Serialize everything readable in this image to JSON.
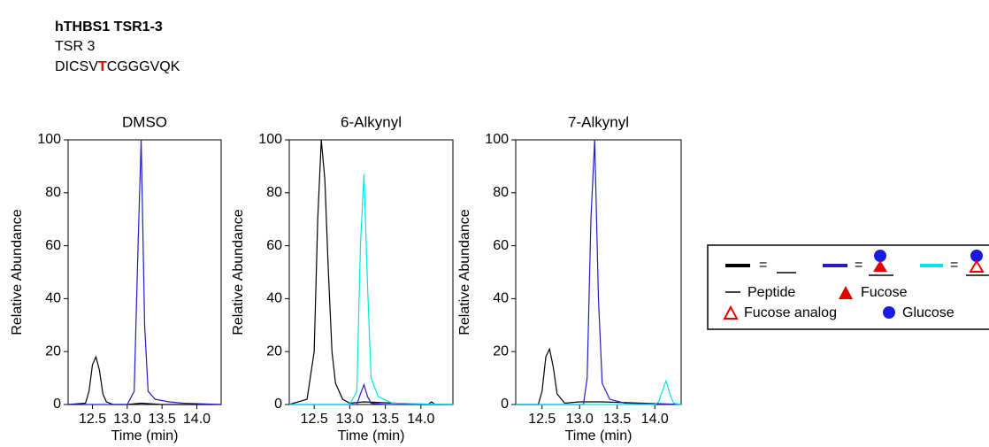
{
  "header": {
    "title": "hTHBS1 TSR1-3",
    "subtitle": "TSR 3",
    "sequence": [
      "DICSV",
      "T",
      "CGGGVQK"
    ]
  },
  "legend": {
    "equals": "=",
    "labels": [
      "Peptide",
      "Fucose",
      "Fucose analog",
      "Glucose"
    ]
  },
  "chart_data": [
    {
      "type": "line",
      "title": "DMSO",
      "xlabel": "Time (min)",
      "ylabel": "Relative Abundance",
      "xlim": [
        12.15,
        14.35
      ],
      "ylim": [
        0,
        100
      ],
      "xticks": [
        12.5,
        {
          "value": 13,
          "label": "13.0"
        },
        13.5,
        {
          "value": 14,
          "label": "14.0"
        }
      ],
      "yticks": [
        0,
        20,
        40,
        60,
        80,
        100
      ],
      "series": [
        {
          "color": "#000000",
          "x": [
            12.15,
            12.4,
            12.45,
            12.5,
            12.55,
            12.6,
            12.65,
            12.7,
            12.8,
            13.0,
            13.2,
            13.5,
            14.35
          ],
          "values": [
            0,
            0.5,
            5,
            15,
            18,
            13,
            4,
            1,
            0,
            0,
            0.5,
            0,
            0
          ]
        },
        {
          "color": "#2020c0",
          "x": [
            12.15,
            13.0,
            13.1,
            13.15,
            13.2,
            13.25,
            13.3,
            13.4,
            13.6,
            13.8,
            14.35
          ],
          "values": [
            0,
            0,
            5,
            55,
            100,
            30,
            5,
            2,
            1,
            0.5,
            0
          ]
        }
      ]
    },
    {
      "type": "line",
      "title": "6-Alkynyl",
      "xlabel": "Time (min)",
      "ylabel": "Relative Abundance",
      "xlim": [
        12.15,
        14.45
      ],
      "ylim": [
        0,
        100
      ],
      "xticks": [
        12.5,
        {
          "value": 13,
          "label": "13.0"
        },
        13.5,
        {
          "value": 14,
          "label": "14.0"
        }
      ],
      "yticks": [
        0,
        20,
        40,
        60,
        80,
        100
      ],
      "series": [
        {
          "color": "#000000",
          "x": [
            12.15,
            12.4,
            12.5,
            12.55,
            12.6,
            12.65,
            12.7,
            12.75,
            12.8,
            12.9,
            13.0,
            13.2,
            14.1,
            14.15,
            14.2,
            14.45
          ],
          "values": [
            0,
            2,
            20,
            70,
            100,
            85,
            50,
            20,
            8,
            2,
            0.5,
            1,
            0,
            1,
            0,
            0
          ]
        },
        {
          "color": "#2020c0",
          "x": [
            12.15,
            13.1,
            13.15,
            13.2,
            13.25,
            13.3,
            13.5,
            14.45
          ],
          "values": [
            0,
            0,
            4,
            7.5,
            3,
            0.5,
            0,
            0
          ]
        },
        {
          "color": "#00e5e5",
          "x": [
            12.15,
            13.0,
            13.1,
            13.15,
            13.2,
            13.25,
            13.3,
            13.4,
            13.6,
            14.45
          ],
          "values": [
            0,
            0,
            5,
            60,
            87,
            45,
            10,
            3,
            0.5,
            0
          ]
        }
      ]
    },
    {
      "type": "line",
      "title": "7-Alkynyl",
      "xlabel": "Time (min)",
      "ylabel": "Relative Abundance",
      "xlim": [
        12.15,
        14.35
      ],
      "ylim": [
        0,
        100
      ],
      "xticks": [
        12.5,
        {
          "value": 13,
          "label": "13.0"
        },
        13.5,
        {
          "value": 14,
          "label": "14.0"
        }
      ],
      "yticks": [
        0,
        20,
        40,
        60,
        80,
        100
      ],
      "series": [
        {
          "color": "#000000",
          "x": [
            12.15,
            12.45,
            12.5,
            12.55,
            12.6,
            12.65,
            12.7,
            12.8,
            13.0,
            13.3,
            14.35
          ],
          "values": [
            0,
            0,
            5,
            18,
            21,
            14,
            4,
            0.5,
            1,
            1,
            0
          ]
        },
        {
          "color": "#2020c0",
          "x": [
            12.15,
            13.05,
            13.1,
            13.15,
            13.2,
            13.25,
            13.3,
            13.4,
            13.6,
            14.35
          ],
          "values": [
            0,
            0,
            10,
            70,
            100,
            40,
            8,
            2,
            0.5,
            0
          ]
        },
        {
          "color": "#00e5e5",
          "x": [
            12.15,
            14.0,
            14.05,
            14.1,
            14.15,
            14.2,
            14.25,
            14.35
          ],
          "values": [
            0,
            0,
            1,
            5,
            9,
            4,
            0.5,
            0
          ]
        }
      ]
    }
  ]
}
